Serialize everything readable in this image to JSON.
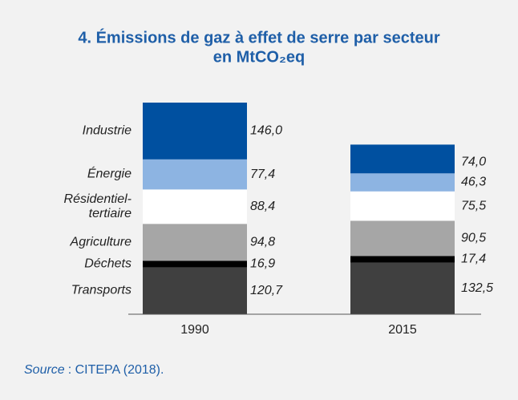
{
  "chart_data": {
    "type": "stacked_bar",
    "title": [
      "4. Émissions de gaz à effet de serre par secteur",
      "en MtCO₂eq"
    ],
    "categories": [
      "1990",
      "2015"
    ],
    "series": [
      {
        "name": "Transports",
        "color": "#404040",
        "values": [
          120.7,
          132.5
        ],
        "value_labels": [
          "120,7",
          "132,5"
        ]
      },
      {
        "name": "Déchets",
        "color": "#000000",
        "values": [
          16.9,
          17.4
        ],
        "value_labels": [
          "16,9",
          "17,4"
        ]
      },
      {
        "name": "Agriculture",
        "color": "#a6a6a6",
        "values": [
          94.8,
          90.5
        ],
        "value_labels": [
          "94,8",
          "90,5"
        ]
      },
      {
        "name": "Résidentiel-tertiaire",
        "color": "#ffffff",
        "values": [
          88.4,
          75.5
        ],
        "value_labels": [
          "88,4",
          "75,5"
        ]
      },
      {
        "name": "Énergie",
        "color": "#8db4e2",
        "values": [
          77.4,
          46.3
        ],
        "value_labels": [
          "77,4",
          "46,3"
        ]
      },
      {
        "name": "Industrie",
        "color": "#0050a0",
        "values": [
          146.0,
          74.0
        ],
        "value_labels": [
          "146,0",
          "74,0"
        ]
      }
    ],
    "source": {
      "label": "Source",
      "text": ": CITEPA (2018)."
    }
  }
}
